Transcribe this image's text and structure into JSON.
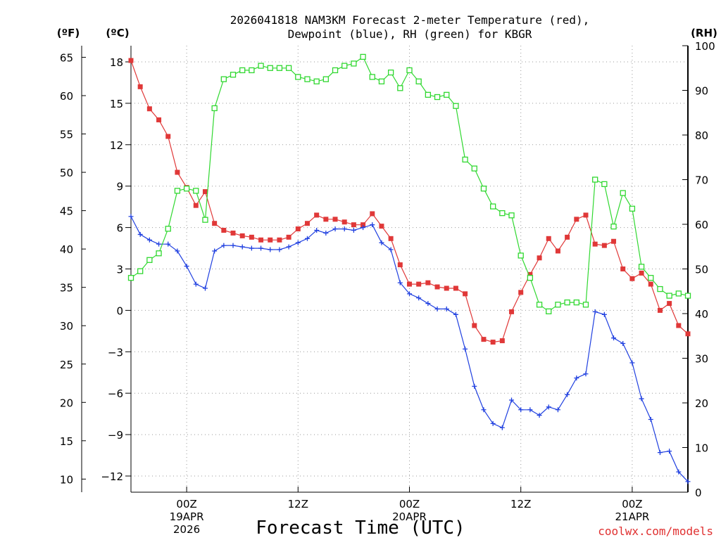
{
  "chart_data": {
    "type": "line",
    "title_line1": "2026041818 NAM3KM Forecast 2-meter Temperature (red),",
    "title_line2": "Dewpoint (blue), RH (green) for KBGR",
    "xlabel": "Forecast Time (UTC)",
    "credit": "coolwx.com/models",
    "unit_left_f": "(ºF)",
    "unit_left_c": "(ºC)",
    "unit_right": "(RH)",
    "x_range_hours": [
      0,
      60
    ],
    "ylim_c": [
      -13,
      19.2
    ],
    "ylim_rh": [
      0,
      100
    ],
    "celsius_ticks": [
      "18",
      "15",
      "12",
      "9",
      "6",
      "3",
      "0",
      "−3",
      "−6",
      "−9",
      "−12"
    ],
    "fahrenheit_ticks": [
      "65",
      "60",
      "55",
      "50",
      "45",
      "40",
      "35",
      "30",
      "25",
      "20",
      "15",
      "10"
    ],
    "rh_ticks": [
      "100",
      "90",
      "80",
      "70",
      "60",
      "50",
      "40",
      "30",
      "20",
      "10",
      "0"
    ],
    "x_ticks": [
      {
        "hour": 6,
        "line1": "00Z",
        "line2": "19APR",
        "line3": "2026"
      },
      {
        "hour": 18,
        "line1": "12Z",
        "line2": "",
        "line3": ""
      },
      {
        "hour": 30,
        "line1": "00Z",
        "line2": "20APR",
        "line3": ""
      },
      {
        "hour": 42,
        "line1": "12Z",
        "line2": "",
        "line3": ""
      },
      {
        "hour": 54,
        "line1": "00Z",
        "line2": "21APR",
        "line3": ""
      }
    ],
    "series": [
      {
        "name": "Temperature",
        "units": "C",
        "color": "#e03838",
        "marker": "filled-square",
        "values": [
          18.1,
          16.2,
          14.6,
          13.8,
          12.6,
          10.0,
          8.9,
          7.6,
          8.6,
          6.3,
          5.8,
          5.6,
          5.4,
          5.3,
          5.1,
          5.1,
          5.1,
          5.3,
          5.9,
          6.3,
          6.9,
          6.6,
          6.6,
          6.4,
          6.2,
          6.2,
          7.0,
          6.1,
          5.2,
          3.3,
          1.9,
          1.9,
          2.0,
          1.7,
          1.6,
          1.6,
          1.2,
          -1.1,
          -2.1,
          -2.3,
          -2.2,
          -0.1,
          1.3,
          2.6,
          3.8,
          5.2,
          4.3,
          5.3,
          6.6,
          6.9,
          4.8,
          4.7,
          5.0,
          3.0,
          2.3,
          2.7,
          1.9,
          0.0,
          0.5,
          -1.1,
          -1.7
        ]
      },
      {
        "name": "Dewpoint",
        "units": "C",
        "color": "#2040e0",
        "marker": "plus",
        "values": [
          6.8,
          5.5,
          5.1,
          4.8,
          4.8,
          4.3,
          3.2,
          1.9,
          1.6,
          4.3,
          4.7,
          4.7,
          4.6,
          4.5,
          4.5,
          4.4,
          4.4,
          4.6,
          4.9,
          5.2,
          5.8,
          5.6,
          5.9,
          5.9,
          5.8,
          6.0,
          6.2,
          4.9,
          4.4,
          2.0,
          1.2,
          0.9,
          0.5,
          0.1,
          0.1,
          -0.3,
          -2.8,
          -5.5,
          -7.2,
          -8.2,
          -8.5,
          -6.5,
          -7.2,
          -7.2,
          -7.6,
          -7.0,
          -7.2,
          -6.1,
          -4.9,
          -4.6,
          -0.1,
          -0.3,
          -2.0,
          -2.4,
          -3.8,
          -6.4,
          -7.9,
          -10.3,
          -10.2,
          -11.7,
          -12.4
        ]
      },
      {
        "name": "RH",
        "units": "%",
        "color": "#30d830",
        "marker": "open-square",
        "values": [
          48,
          49.5,
          52,
          53.5,
          59,
          67.5,
          68,
          67.5,
          61,
          86,
          92.5,
          93.5,
          94.5,
          94.5,
          95.5,
          95,
          95,
          95,
          93,
          92.5,
          92,
          92.5,
          94.5,
          95.5,
          96,
          97.5,
          93,
          92,
          94,
          90.5,
          94.5,
          92,
          89,
          88.5,
          89,
          86.5,
          74.5,
          72.5,
          68,
          64,
          62.5,
          62,
          53,
          48,
          42,
          40.5,
          42,
          42.5,
          42.5,
          42,
          70,
          69,
          59.5,
          67,
          63.5,
          50.5,
          48,
          45.5,
          44,
          44.5,
          44
        ]
      }
    ]
  }
}
